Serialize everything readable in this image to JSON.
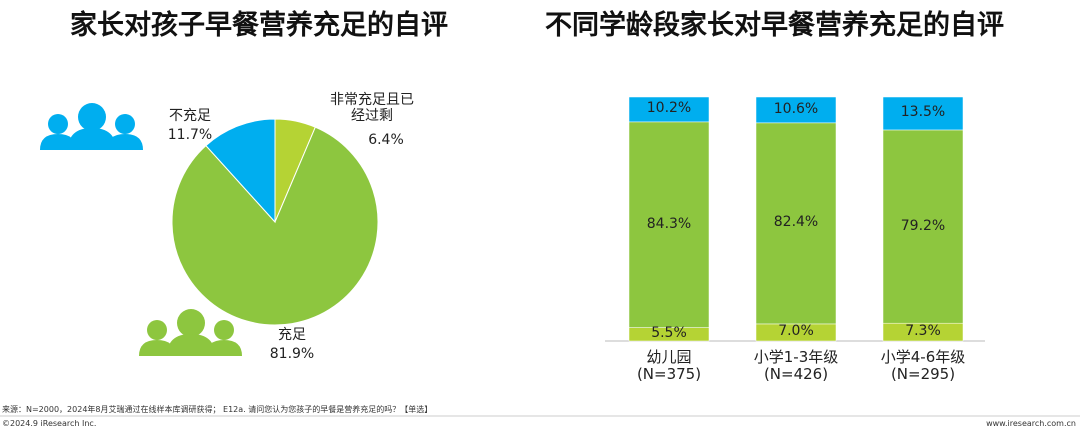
{
  "chart_data": [
    {
      "type": "pie",
      "title": "家长对孩子早餐营养充足的自评",
      "categories": [
        "非常充足且已\n经过剩",
        "充足",
        "不充足"
      ],
      "values": [
        6.4,
        81.9,
        11.7
      ],
      "value_labels": [
        "6.4%",
        "81.9%",
        "11.7%"
      ],
      "colors": [
        "#b5d334",
        "#8dc63f",
        "#00aeef"
      ]
    },
    {
      "type": "stacked_bar",
      "title": "不同学龄段家长对早餐营养充足的自评",
      "categories": [
        "幼儿园\n(N=375)",
        "小学1-3年级\n(N=426)",
        "小学4-6年级\n(N=295)"
      ],
      "ylim": [
        0,
        100
      ],
      "series": [
        {
          "color": "#b5d334",
          "values": [
            5.5,
            7.0,
            7.3
          ],
          "value_labels": [
            "5.5%",
            "7.0%",
            "7.3%"
          ]
        },
        {
          "color": "#8dc63f",
          "values": [
            84.3,
            82.4,
            79.2
          ],
          "value_labels": [
            "84.3%",
            "82.4%",
            "79.2%"
          ]
        },
        {
          "color": "#00aeef",
          "values": [
            10.2,
            10.6,
            13.5
          ],
          "value_labels": [
            "10.2%",
            "10.6%",
            "13.5%"
          ]
        }
      ]
    }
  ],
  "source": "来源：N=2000，2024年8月艾瑞通过在线样本库调研获得； E12a. 请问您认为您孩子的早餐是营养充足的吗？【单选】",
  "copyright": "©2024.9 iResearch Inc.",
  "website": "www.iresearch.com.cn"
}
